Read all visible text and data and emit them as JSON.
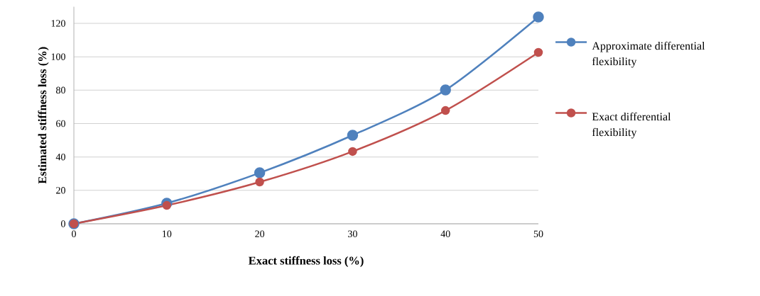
{
  "chart_data": {
    "type": "line",
    "xlabel": "Exact stiffness loss (%)",
    "ylabel": "Estimated stiffness loss (%)",
    "x": [
      0,
      10,
      20,
      30,
      40,
      50
    ],
    "series": [
      {
        "name": "Approximate differential flexibility",
        "color": "#4f81bd",
        "values": [
          0,
          12.3,
          30.5,
          53,
          80.1,
          123.8
        ]
      },
      {
        "name": "Exact differential flexibility",
        "color": "#c0504d",
        "values": [
          0,
          11,
          25,
          43.3,
          67.8,
          102.6
        ]
      }
    ],
    "xlim": [
      0,
      50
    ],
    "xticks": [
      0,
      10,
      20,
      30,
      40,
      50
    ],
    "ylim": [
      0,
      130
    ],
    "yticks": [
      0,
      20,
      40,
      60,
      80,
      100,
      120
    ],
    "grid": "y",
    "legend": "right",
    "marker": "circle",
    "line_style": "solid"
  }
}
